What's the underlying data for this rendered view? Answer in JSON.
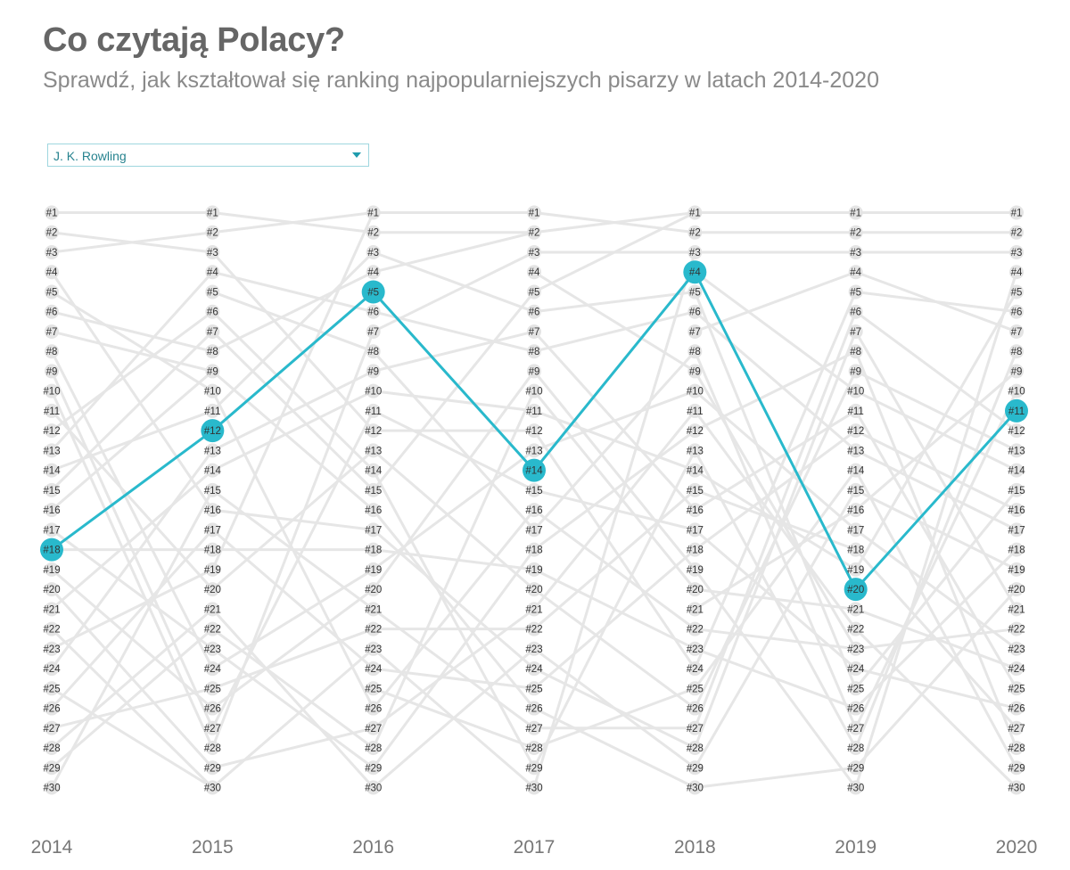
{
  "header": {
    "title": "Co czytają Polacy?",
    "subtitle": "Sprawdź, jak kształtował się ranking najpopularniejszych pisarzy w latach 2014-2020"
  },
  "filter": {
    "selected": "J. K. Rowling",
    "icon": "chevron-down-icon"
  },
  "colors": {
    "highlight": "#29b9cc",
    "background_line": "#e6e6e6",
    "node": "#e4e4e4",
    "rank_text": "#333333",
    "year_text": "#777777"
  },
  "chart_data": {
    "type": "line",
    "subtype": "bump",
    "x": [
      "2014",
      "2015",
      "2016",
      "2017",
      "2018",
      "2019",
      "2020"
    ],
    "y_ranks": [
      "#1",
      "#2",
      "#3",
      "#4",
      "#5",
      "#6",
      "#7",
      "#8",
      "#9",
      "#10",
      "#11",
      "#12",
      "#13",
      "#14",
      "#15",
      "#16",
      "#17",
      "#18",
      "#19",
      "#20",
      "#21",
      "#22",
      "#23",
      "#24",
      "#25",
      "#26",
      "#27",
      "#28",
      "#29",
      "#30"
    ],
    "y_reversed": true,
    "ylim": [
      1,
      30
    ],
    "highlight_series": {
      "name": "J. K. Rowling",
      "values": [
        18,
        12,
        5,
        14,
        4,
        20,
        11
      ]
    },
    "background_segments": [
      [
        [
          1,
          1
        ],
        [
          2,
          3
        ],
        [
          3,
          2
        ],
        [
          4,
          16
        ],
        [
          5,
          10
        ],
        [
          6,
          8
        ],
        [
          7,
          9
        ],
        [
          8,
          24
        ],
        [
          9,
          27
        ],
        [
          10,
          28
        ],
        [
          11,
          20
        ],
        [
          12,
          6
        ],
        [
          13,
          4
        ],
        [
          14,
          11
        ],
        [
          15,
          7
        ],
        [
          16,
          9
        ],
        [
          17,
          23
        ],
        [
          18,
          18
        ],
        [
          19,
          26
        ],
        [
          20,
          29
        ],
        [
          21,
          14
        ],
        [
          22,
          30
        ],
        [
          23,
          19
        ],
        [
          24,
          13
        ],
        [
          25,
          30
        ],
        [
          26,
          17
        ],
        [
          27,
          25
        ],
        [
          28,
          21
        ],
        [
          29,
          22
        ],
        [
          30,
          15
        ]
      ],
      [
        [
          1,
          2
        ],
        [
          2,
          1
        ],
        [
          3,
          12
        ],
        [
          4,
          6
        ],
        [
          5,
          8
        ],
        [
          6,
          14
        ],
        [
          7,
          15
        ],
        [
          8,
          4
        ],
        [
          9,
          16
        ],
        [
          10,
          26
        ],
        [
          11,
          3
        ],
        [
          12,
          5
        ],
        [
          13,
          9
        ],
        [
          14,
          10
        ],
        [
          15,
          21
        ],
        [
          16,
          17
        ],
        [
          17,
          24
        ],
        [
          18,
          18
        ],
        [
          19,
          1
        ],
        [
          20,
          13
        ],
        [
          21,
          30
        ],
        [
          22,
          28
        ],
        [
          23,
          29
        ],
        [
          24,
          19
        ],
        [
          25,
          22
        ],
        [
          26,
          20
        ],
        [
          27,
          11
        ],
        [
          28,
          7
        ],
        [
          29,
          27
        ],
        [
          30,
          23
        ]
      ],
      [
        [
          1,
          1
        ],
        [
          2,
          2
        ],
        [
          3,
          6
        ],
        [
          4,
          2
        ],
        [
          5,
          14
        ],
        [
          6,
          8
        ],
        [
          7,
          3
        ],
        [
          8,
          17
        ],
        [
          9,
          7
        ],
        [
          10,
          11
        ],
        [
          11,
          15
        ],
        [
          12,
          12
        ],
        [
          13,
          20
        ],
        [
          14,
          29
        ],
        [
          15,
          5
        ],
        [
          16,
          26
        ],
        [
          17,
          24
        ],
        [
          18,
          19
        ],
        [
          19,
          13
        ],
        [
          20,
          9
        ],
        [
          21,
          27
        ],
        [
          22,
          22
        ],
        [
          23,
          30
        ],
        [
          24,
          25
        ],
        [
          25,
          28
        ],
        [
          26,
          16
        ],
        [
          27,
          21
        ],
        [
          28,
          10
        ],
        [
          29,
          18
        ],
        [
          30,
          23
        ]
      ],
      [
        [
          1,
          2
        ],
        [
          2,
          1
        ],
        [
          3,
          3
        ],
        [
          4,
          9
        ],
        [
          5,
          1
        ],
        [
          6,
          5
        ],
        [
          7,
          16
        ],
        [
          8,
          6
        ],
        [
          9,
          19
        ],
        [
          10,
          20
        ],
        [
          11,
          14
        ],
        [
          12,
          24
        ],
        [
          13,
          10
        ],
        [
          14,
          4
        ],
        [
          15,
          17
        ],
        [
          16,
          22
        ],
        [
          17,
          8
        ],
        [
          18,
          12
        ],
        [
          19,
          23
        ],
        [
          20,
          26
        ],
        [
          21,
          11
        ],
        [
          22,
          15
        ],
        [
          23,
          29
        ],
        [
          24,
          28
        ],
        [
          25,
          18
        ],
        [
          26,
          30
        ],
        [
          27,
          27
        ],
        [
          28,
          25
        ],
        [
          29,
          13
        ],
        [
          30,
          3
        ]
      ],
      [
        [
          1,
          1
        ],
        [
          2,
          2
        ],
        [
          3,
          3
        ],
        [
          4,
          10
        ],
        [
          5,
          25
        ],
        [
          6,
          13
        ],
        [
          7,
          4
        ],
        [
          8,
          27
        ],
        [
          9,
          23
        ],
        [
          10,
          17
        ],
        [
          11,
          22
        ],
        [
          12,
          8
        ],
        [
          13,
          28
        ],
        [
          14,
          19
        ],
        [
          15,
          18
        ],
        [
          16,
          11
        ],
        [
          17,
          24
        ],
        [
          18,
          12
        ],
        [
          19,
          30
        ],
        [
          20,
          21
        ],
        [
          21,
          16
        ],
        [
          22,
          23
        ],
        [
          23,
          26
        ],
        [
          24,
          5
        ],
        [
          25,
          14
        ],
        [
          26,
          9
        ],
        [
          27,
          6
        ],
        [
          28,
          7
        ],
        [
          29,
          15
        ],
        [
          30,
          29
        ]
      ],
      [
        [
          1,
          1
        ],
        [
          2,
          2
        ],
        [
          3,
          3
        ],
        [
          4,
          7
        ],
        [
          5,
          6
        ],
        [
          6,
          12
        ],
        [
          7,
          21
        ],
        [
          8,
          28
        ],
        [
          9,
          13
        ],
        [
          10,
          14
        ],
        [
          11,
          25
        ],
        [
          12,
          16
        ],
        [
          13,
          17
        ],
        [
          14,
          29
        ],
        [
          15,
          19
        ],
        [
          16,
          9
        ],
        [
          17,
          23
        ],
        [
          18,
          27
        ],
        [
          19,
          5
        ],
        [
          21,
          24
        ],
        [
          22,
          30
        ],
        [
          23,
          22
        ],
        [
          24,
          26
        ],
        [
          25,
          15
        ],
        [
          26,
          18
        ],
        [
          27,
          10
        ],
        [
          28,
          8
        ],
        [
          29,
          20
        ],
        [
          30,
          4
        ]
      ]
    ]
  }
}
